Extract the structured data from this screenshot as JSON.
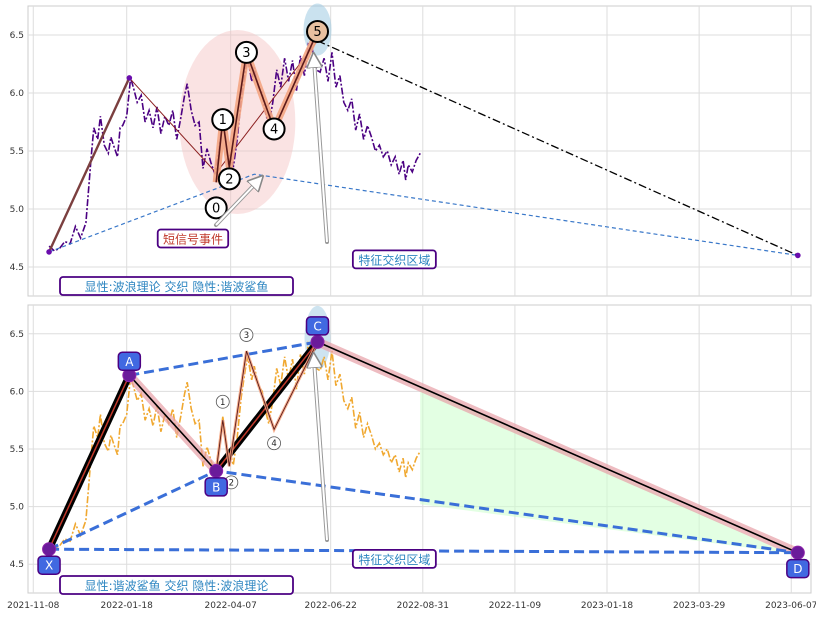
{
  "chart_data": [
    {
      "panel": "top",
      "type": "line",
      "ylim": [
        4.25,
        6.75
      ],
      "yticks": [
        "4.5",
        "5.0",
        "5.5",
        "6.0",
        "6.5"
      ],
      "yvalues": [
        4.5,
        5.0,
        5.5,
        6.0,
        6.5
      ],
      "grid": true,
      "price_color": "#4b0082",
      "price_series": [
        [
          "2021-11-20",
          4.68
        ],
        [
          "2021-11-24",
          4.64
        ],
        [
          "2021-11-28",
          4.66
        ],
        [
          "2021-12-02",
          4.72
        ],
        [
          "2021-12-06",
          4.7
        ],
        [
          "2021-12-10",
          4.85
        ],
        [
          "2021-12-14",
          4.75
        ],
        [
          "2021-12-18",
          4.88
        ],
        [
          "2021-12-22",
          5.45
        ],
        [
          "2021-12-24",
          5.7
        ],
        [
          "2021-12-27",
          5.6
        ],
        [
          "2021-12-29",
          5.8
        ],
        [
          "2022-01-01",
          5.55
        ],
        [
          "2022-01-04",
          5.48
        ],
        [
          "2022-01-06",
          5.62
        ],
        [
          "2022-01-08",
          5.55
        ],
        [
          "2022-01-11",
          5.45
        ],
        [
          "2022-01-13",
          5.7
        ],
        [
          "2022-01-15",
          5.72
        ],
        [
          "2022-01-18",
          5.8
        ],
        [
          "2022-01-21",
          6.13
        ],
        [
          "2022-01-23",
          6.05
        ],
        [
          "2022-01-26",
          5.92
        ],
        [
          "2022-01-29",
          5.98
        ],
        [
          "2022-02-01",
          5.75
        ],
        [
          "2022-02-04",
          5.85
        ],
        [
          "2022-02-07",
          5.7
        ],
        [
          "2022-02-10",
          5.88
        ],
        [
          "2022-02-13",
          5.65
        ],
        [
          "2022-02-16",
          5.8
        ],
        [
          "2022-02-19",
          5.72
        ],
        [
          "2022-02-22",
          5.85
        ],
        [
          "2022-02-25",
          5.6
        ],
        [
          "2022-02-28",
          5.78
        ],
        [
          "2022-03-03",
          5.98
        ],
        [
          "2022-03-05",
          6.08
        ],
        [
          "2022-03-08",
          5.85
        ],
        [
          "2022-03-11",
          5.72
        ],
        [
          "2022-03-14",
          5.75
        ],
        [
          "2022-03-17",
          5.35
        ],
        [
          "2022-03-20",
          5.52
        ],
        [
          "2022-03-23",
          5.4
        ],
        [
          "2022-03-26",
          5.3
        ],
        [
          "2022-03-29",
          5.5
        ],
        [
          "2022-04-01",
          5.78
        ],
        [
          "2022-04-03",
          5.62
        ],
        [
          "2022-04-05",
          5.4
        ],
        [
          "2022-04-07",
          5.45
        ],
        [
          "2022-04-09",
          5.36
        ],
        [
          "2022-04-12",
          5.6
        ],
        [
          "2022-04-15",
          5.95
        ],
        [
          "2022-04-18",
          6.18
        ],
        [
          "2022-04-20",
          6.3
        ],
        [
          "2022-04-23",
          6.1
        ],
        [
          "2022-04-25",
          6.22
        ],
        [
          "2022-04-28",
          6.05
        ],
        [
          "2022-05-01",
          6.0
        ],
        [
          "2022-05-03",
          5.85
        ],
        [
          "2022-05-06",
          5.72
        ],
        [
          "2022-05-09",
          5.92
        ],
        [
          "2022-05-12",
          6.2
        ],
        [
          "2022-05-15",
          6.05
        ],
        [
          "2022-05-18",
          6.3
        ],
        [
          "2022-05-21",
          6.1
        ],
        [
          "2022-05-24",
          6.28
        ],
        [
          "2022-05-27",
          6.02
        ],
        [
          "2022-05-30",
          6.32
        ],
        [
          "2022-06-02",
          6.15
        ],
        [
          "2022-06-05",
          6.42
        ],
        [
          "2022-06-08",
          6.38
        ],
        [
          "2022-06-11",
          6.2
        ],
        [
          "2022-06-14",
          6.18
        ],
        [
          "2022-06-17",
          6.3
        ],
        [
          "2022-06-20",
          6.1
        ],
        [
          "2022-06-23",
          6.35
        ],
        [
          "2022-06-26",
          6.05
        ],
        [
          "2022-06-29",
          6.15
        ],
        [
          "2022-07-02",
          5.92
        ],
        [
          "2022-07-05",
          5.85
        ],
        [
          "2022-07-08",
          5.95
        ],
        [
          "2022-07-11",
          5.68
        ],
        [
          "2022-07-14",
          5.82
        ],
        [
          "2022-07-17",
          5.6
        ],
        [
          "2022-07-20",
          5.72
        ],
        [
          "2022-07-23",
          5.62
        ],
        [
          "2022-07-26",
          5.5
        ],
        [
          "2022-07-29",
          5.55
        ],
        [
          "2022-08-01",
          5.45
        ],
        [
          "2022-08-04",
          5.5
        ],
        [
          "2022-08-07",
          5.38
        ],
        [
          "2022-08-10",
          5.45
        ],
        [
          "2022-08-13",
          5.3
        ],
        [
          "2022-08-16",
          5.42
        ],
        [
          "2022-08-18",
          5.25
        ],
        [
          "2022-08-20",
          5.38
        ],
        [
          "2022-08-23",
          5.32
        ],
        [
          "2022-08-26",
          5.42
        ],
        [
          "2022-08-29",
          5.48
        ]
      ],
      "elliott_wave": {
        "points": [
          [
            "2022-03-27",
            5.23
          ],
          [
            "2022-04-01",
            5.77
          ],
          [
            "2022-04-06",
            5.36
          ],
          [
            "2022-04-19",
            6.35
          ],
          [
            "2022-05-10",
            5.69
          ],
          [
            "2022-06-12",
            6.53
          ]
        ],
        "labels": [
          "0",
          "1",
          "2",
          "3",
          "4",
          "5"
        ],
        "label_offset": [
          [
            0,
            -0.22
          ],
          [
            0,
            0.0
          ],
          [
            0,
            -0.1
          ],
          [
            0,
            0.0
          ],
          [
            0,
            0.0
          ],
          [
            0,
            0.0
          ]
        ],
        "color": "#a0522d"
      },
      "harmonic_thin": [
        [
          "2021-11-20",
          4.63
        ],
        [
          "2022-01-20",
          6.13
        ],
        [
          "2022-03-27",
          5.31
        ],
        [
          "2022-06-12",
          6.45
        ]
      ],
      "trend_dashed": [
        [
          "2021-11-20",
          4.63
        ],
        [
          "2022-04-25",
          5.3
        ],
        [
          "2023-06-12",
          4.6
        ]
      ],
      "trend_dashdot": [
        [
          "2022-06-12",
          6.45
        ],
        [
          "2023-06-12",
          4.6
        ]
      ],
      "annotations": [
        {
          "text": "短信号事件",
          "color": "#c0392b",
          "at": [
            "2022-02-10",
            4.72
          ]
        },
        {
          "text": "特征交织区域",
          "color": "#2e86c1",
          "at": [
            "2022-07-10",
            4.54
          ]
        },
        {
          "text": "显性:波浪理论 交织 隐性:谐波鲨鱼",
          "color": "#2e86c1",
          "at": [
            "2021-11-15",
            4.36
          ]
        }
      ]
    },
    {
      "panel": "bottom",
      "type": "line",
      "ylim": [
        4.25,
        6.75
      ],
      "yticks": [
        "4.5",
        "5.0",
        "5.5",
        "6.0",
        "6.5"
      ],
      "yvalues": [
        4.5,
        5.0,
        5.5,
        6.0,
        6.5
      ],
      "grid": true,
      "price_color": "#f0a830",
      "harmonic": {
        "points": [
          [
            "2021-11-20",
            4.63
          ],
          [
            "2022-01-20",
            6.14
          ],
          [
            "2022-03-27",
            5.31
          ],
          [
            "2022-06-12",
            6.43
          ],
          [
            "2023-06-12",
            4.6
          ]
        ],
        "labels": [
          "X",
          "A",
          "B",
          "C",
          "D"
        ]
      },
      "mini_wave": {
        "points": [
          [
            "2022-03-27",
            5.31
          ],
          [
            "2022-04-01",
            5.75
          ],
          [
            "2022-04-06",
            5.35
          ],
          [
            "2022-04-19",
            6.35
          ],
          [
            "2022-05-10",
            5.67
          ],
          [
            "2022-06-12",
            6.43
          ]
        ],
        "labels": [
          "",
          "1",
          "2",
          "3",
          "4",
          ""
        ]
      },
      "annotations": [
        {
          "text": "特征交织区域",
          "color": "#2e86c1",
          "at": [
            "2022-07-10",
            4.52
          ]
        },
        {
          "text": "显性:谐波鲨鱼 交织 隐性:波浪理论",
          "color": "#2e86c1",
          "at": [
            "2021-11-15",
            4.35
          ]
        }
      ]
    }
  ],
  "x_axis": {
    "ticks": [
      "2021-11-08",
      "2022-01-18",
      "2022-04-07",
      "2022-06-22",
      "2022-08-31",
      "2022-11-09",
      "2023-01-18",
      "2023-03-29",
      "2023-06-07"
    ],
    "range": [
      "2021-11-04",
      "2023-06-22"
    ]
  }
}
